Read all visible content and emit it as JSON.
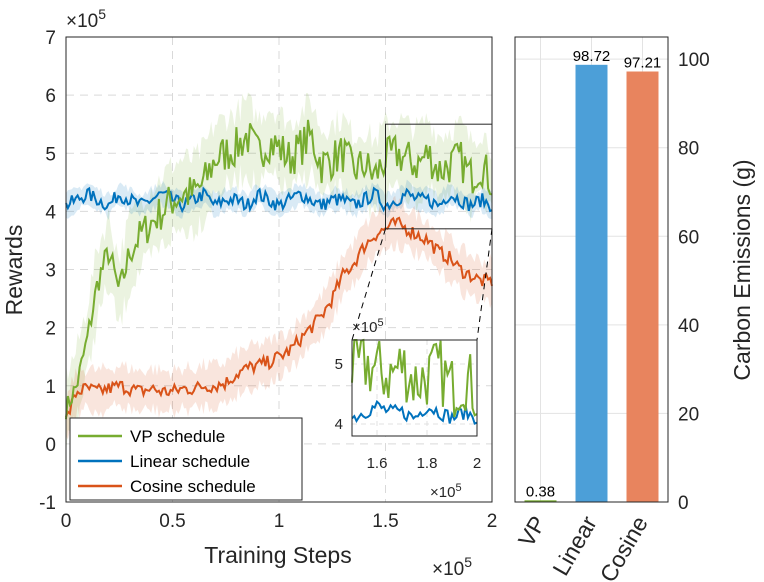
{
  "chart_data": [
    {
      "type": "line",
      "xlabel": "Training Steps",
      "ylabel": "Rewards",
      "x_exponent": "×10",
      "x_exponent_power": "5",
      "y_exponent": "×10",
      "y_exponent_power": "5",
      "xlim": [
        0,
        2
      ],
      "ylim": [
        -1,
        7
      ],
      "xticks": [
        "0",
        "0.5",
        "1",
        "1.5",
        "2"
      ],
      "yticks": [
        "-1",
        "0",
        "1",
        "2",
        "3",
        "4",
        "5",
        "6",
        "7"
      ],
      "grid": true,
      "legend": "bottom-left",
      "series": [
        {
          "name": "VP schedule",
          "color": "#77AC30",
          "x": [
            0,
            0.05,
            0.1,
            0.15,
            0.2,
            0.25,
            0.3,
            0.35,
            0.4,
            0.45,
            0.5,
            0.55,
            0.6,
            0.65,
            0.7,
            0.75,
            0.8,
            0.85,
            0.9,
            0.95,
            1.0,
            1.05,
            1.1,
            1.15,
            1.2,
            1.25,
            1.3,
            1.35,
            1.4,
            1.45,
            1.5,
            1.55,
            1.6,
            1.65,
            1.7,
            1.75,
            1.8,
            1.85,
            1.9,
            1.95,
            2.0
          ],
          "y": [
            0.6,
            1.0,
            1.8,
            2.8,
            3.3,
            2.6,
            3.3,
            3.6,
            3.8,
            4.0,
            4.2,
            4.3,
            4.3,
            4.5,
            4.9,
            5.0,
            5.1,
            5.3,
            5.0,
            5.2,
            5.1,
            4.9,
            5.1,
            5.3,
            4.8,
            4.9,
            5.0,
            4.7,
            4.8,
            4.6,
            4.9,
            5.0,
            4.9,
            4.8,
            5.0,
            4.7,
            4.8,
            4.9,
            4.6,
            4.8,
            4.5
          ]
        },
        {
          "name": "Linear schedule",
          "color": "#0072BD",
          "x": [
            0,
            0.05,
            0.1,
            0.15,
            0.2,
            0.25,
            0.3,
            0.35,
            0.4,
            0.45,
            0.5,
            0.55,
            0.6,
            0.65,
            0.7,
            0.75,
            0.8,
            0.85,
            0.9,
            0.95,
            1.0,
            1.05,
            1.1,
            1.15,
            1.2,
            1.25,
            1.3,
            1.35,
            1.4,
            1.45,
            1.5,
            1.55,
            1.6,
            1.65,
            1.7,
            1.75,
            1.8,
            1.85,
            1.9,
            1.95,
            2.0
          ],
          "y": [
            4.1,
            4.2,
            4.3,
            4.2,
            4.1,
            4.3,
            4.2,
            4.1,
            4.2,
            4.3,
            4.2,
            4.1,
            4.2,
            4.3,
            4.1,
            4.2,
            4.2,
            4.1,
            4.3,
            4.2,
            4.1,
            4.2,
            4.3,
            4.2,
            4.1,
            4.2,
            4.2,
            4.1,
            4.2,
            4.3,
            4.1,
            4.2,
            4.3,
            4.2,
            4.2,
            4.1,
            4.3,
            4.2,
            4.1,
            4.2,
            4.1
          ]
        },
        {
          "name": "Cosine schedule",
          "color": "#D95319",
          "x": [
            0,
            0.05,
            0.1,
            0.15,
            0.2,
            0.25,
            0.3,
            0.35,
            0.4,
            0.45,
            0.5,
            0.55,
            0.6,
            0.65,
            0.7,
            0.75,
            0.8,
            0.85,
            0.9,
            0.95,
            1.0,
            1.05,
            1.1,
            1.15,
            1.2,
            1.25,
            1.3,
            1.35,
            1.4,
            1.45,
            1.5,
            1.55,
            1.6,
            1.65,
            1.7,
            1.75,
            1.8,
            1.85,
            1.9,
            1.95,
            2.0
          ],
          "y": [
            0.4,
            0.9,
            0.95,
            0.9,
            0.95,
            1.0,
            0.95,
            0.9,
            0.95,
            0.9,
            0.9,
            0.95,
            0.95,
            1.0,
            1.0,
            1.05,
            1.2,
            1.3,
            1.35,
            1.4,
            1.5,
            1.6,
            1.8,
            2.0,
            2.2,
            2.5,
            2.9,
            3.1,
            3.4,
            3.6,
            3.7,
            3.8,
            3.7,
            3.6,
            3.5,
            3.3,
            3.2,
            3.0,
            2.9,
            2.8,
            2.8
          ]
        }
      ],
      "inset": {
        "xlim": [
          1.5,
          2
        ],
        "ylim": [
          3.8,
          5.4
        ],
        "xticks": [
          "1.6",
          "1.8",
          "2"
        ],
        "yticks": [
          "4",
          "5"
        ],
        "x_exponent": "×10",
        "x_exponent_power": "5",
        "y_exponent": "×10",
        "y_exponent_power": "5"
      }
    },
    {
      "type": "bar",
      "ylabel": "Carbon Emissions (g)",
      "categories": [
        "VP",
        "Linear",
        "Cosine"
      ],
      "values": [
        0.38,
        98.72,
        97.21
      ],
      "value_labels": [
        "0.38",
        "98.72",
        "97.21"
      ],
      "colors": [
        "#77AC30",
        "#4C9FD8",
        "#E8845E"
      ],
      "ylim": [
        0,
        105
      ],
      "yticks": [
        "0",
        "20",
        "40",
        "60",
        "80",
        "100"
      ],
      "grid": true
    }
  ]
}
